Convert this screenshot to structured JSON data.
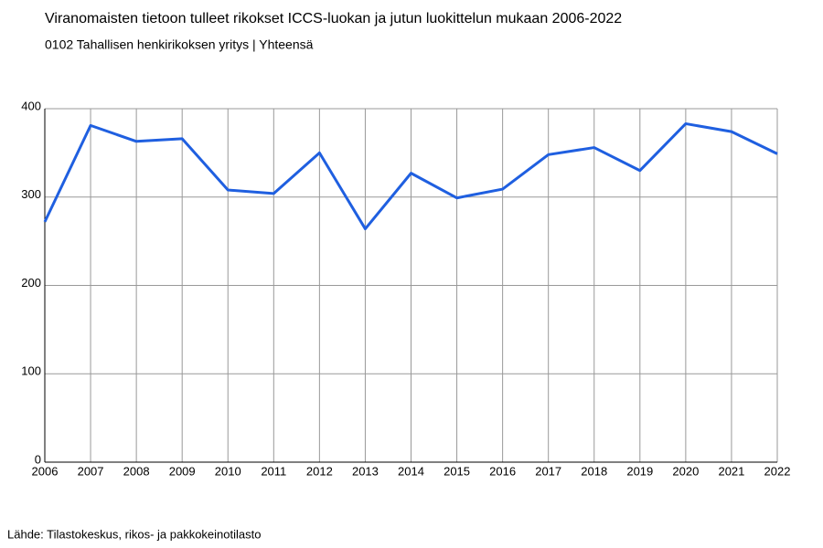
{
  "chart_data": {
    "type": "line",
    "title": "Viranomaisten tietoon tulleet rikokset ICCS-luokan ja jutun luokittelun mukaan 2006-2022",
    "subtitle": "0102  Tahallisen henkirikoksen yritys | Yhteensä",
    "source": "Lähde: Tilastokeskus, rikos- ja pakkokeinotilasto",
    "x": [
      2006,
      2007,
      2008,
      2009,
      2010,
      2011,
      2012,
      2013,
      2014,
      2015,
      2016,
      2017,
      2018,
      2019,
      2020,
      2021,
      2022
    ],
    "series": [
      {
        "name": "Yhteensä",
        "color": "#1f5fe0",
        "values": [
          272,
          381,
          363,
          366,
          308,
          304,
          350,
          264,
          327,
          299,
          309,
          348,
          356,
          330,
          383,
          374,
          349
        ]
      }
    ],
    "xlim": [
      2006,
      2022
    ],
    "xticks": [
      2006,
      2007,
      2008,
      2009,
      2010,
      2011,
      2012,
      2013,
      2014,
      2015,
      2016,
      2017,
      2018,
      2019,
      2020,
      2021,
      2022
    ],
    "ylim": [
      0,
      400
    ],
    "yticks": [
      0,
      100,
      200,
      300,
      400
    ],
    "grid": true
  }
}
